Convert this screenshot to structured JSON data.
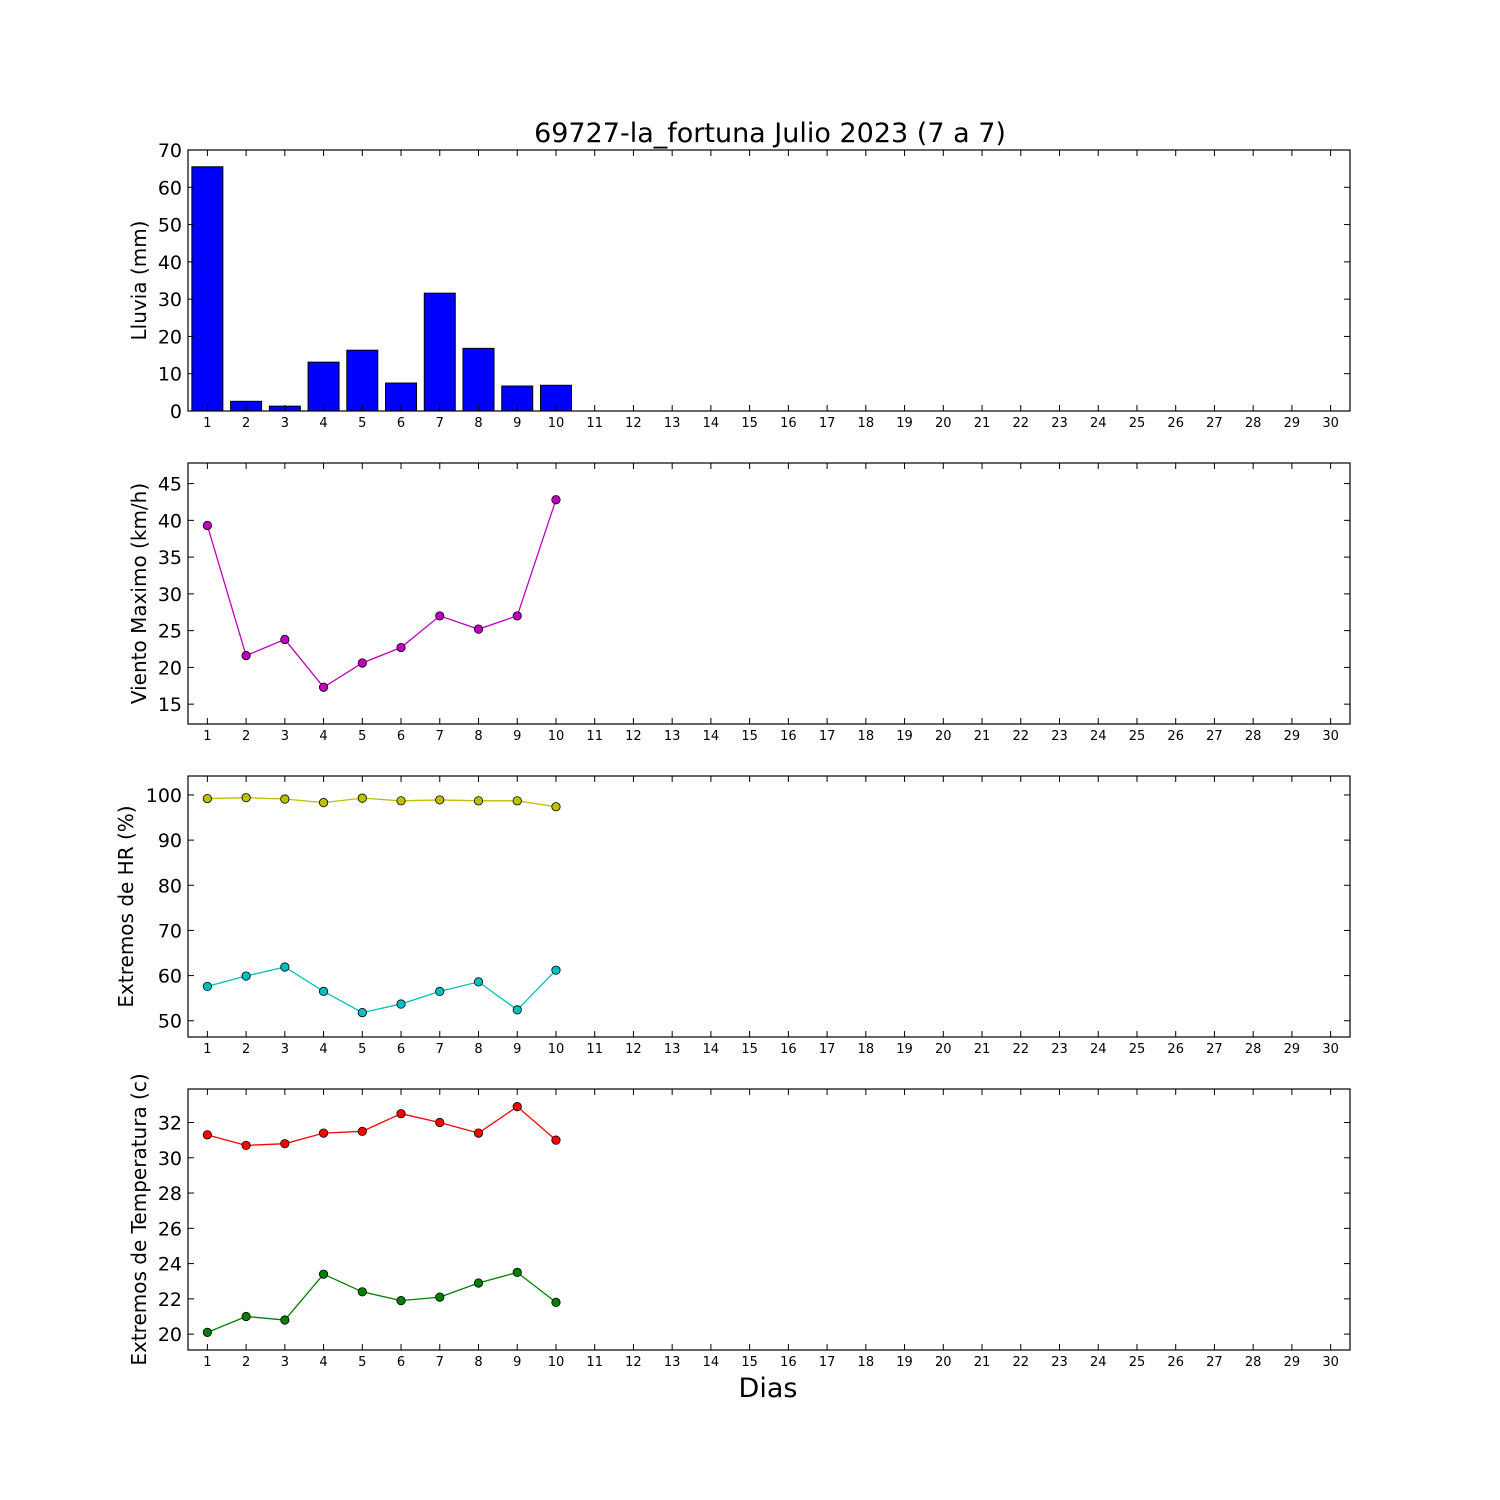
{
  "title": "69727-la_fortuna Julio 2023  (7 a 7)",
  "xlabel": "Dias",
  "chart_data": [
    {
      "type": "bar",
      "ylabel": "Lluvia (mm)",
      "xlim": [
        0.5,
        30.5
      ],
      "ylim": [
        0,
        70
      ],
      "yticks": [
        0,
        10,
        20,
        30,
        40,
        50,
        60,
        70
      ],
      "xticks": [
        1,
        2,
        3,
        4,
        5,
        6,
        7,
        8,
        9,
        10,
        11,
        12,
        13,
        14,
        15,
        16,
        17,
        18,
        19,
        20,
        21,
        22,
        23,
        24,
        25,
        26,
        27,
        28,
        29,
        30
      ],
      "categories": [
        1,
        2,
        3,
        4,
        5,
        6,
        7,
        8,
        9,
        10
      ],
      "series": [
        {
          "color": "#0000ff",
          "values": [
            65.5,
            2.6,
            1.3,
            13.1,
            16.3,
            7.5,
            31.6,
            16.8,
            6.7,
            6.9
          ]
        }
      ]
    },
    {
      "type": "line",
      "ylabel": "Viento Maximo (km/h)",
      "xlim": [
        0.5,
        30.5
      ],
      "ylim": [
        12.3,
        47.8
      ],
      "yticks": [
        15,
        20,
        25,
        30,
        35,
        40,
        45
      ],
      "xticks": [
        1,
        2,
        3,
        4,
        5,
        6,
        7,
        8,
        9,
        10,
        11,
        12,
        13,
        14,
        15,
        16,
        17,
        18,
        19,
        20,
        21,
        22,
        23,
        24,
        25,
        26,
        27,
        28,
        29,
        30
      ],
      "x": [
        1,
        2,
        3,
        4,
        5,
        6,
        7,
        8,
        9,
        10
      ],
      "series": [
        {
          "color": "#bf00bf",
          "values": [
            39.3,
            21.6,
            23.8,
            17.3,
            20.6,
            22.7,
            27.0,
            25.2,
            27.0,
            42.8
          ]
        }
      ]
    },
    {
      "type": "line",
      "ylabel": "Extremos de HR (%)",
      "xlim": [
        0.5,
        30.5
      ],
      "ylim": [
        46.4,
        104.2
      ],
      "yticks": [
        50,
        60,
        70,
        80,
        90,
        100
      ],
      "xticks": [
        1,
        2,
        3,
        4,
        5,
        6,
        7,
        8,
        9,
        10,
        11,
        12,
        13,
        14,
        15,
        16,
        17,
        18,
        19,
        20,
        21,
        22,
        23,
        24,
        25,
        26,
        27,
        28,
        29,
        30
      ],
      "x": [
        1,
        2,
        3,
        4,
        5,
        6,
        7,
        8,
        9,
        10
      ],
      "series": [
        {
          "color": "#bfbf00",
          "values": [
            99.2,
            99.4,
            99.1,
            98.3,
            99.3,
            98.7,
            98.9,
            98.7,
            98.7,
            97.4
          ]
        },
        {
          "color": "#00bfbf",
          "values": [
            57.6,
            59.9,
            61.9,
            56.5,
            51.8,
            53.7,
            56.5,
            58.6,
            52.4,
            61.2
          ]
        }
      ]
    },
    {
      "type": "line",
      "ylabel": "Extremos de Temperatura (c)",
      "xlim": [
        0.5,
        30.5
      ],
      "ylim": [
        19.1,
        33.9
      ],
      "yticks": [
        20,
        22,
        24,
        26,
        28,
        30,
        32
      ],
      "xticks": [
        1,
        2,
        3,
        4,
        5,
        6,
        7,
        8,
        9,
        10,
        11,
        12,
        13,
        14,
        15,
        16,
        17,
        18,
        19,
        20,
        21,
        22,
        23,
        24,
        25,
        26,
        27,
        28,
        29,
        30
      ],
      "x": [
        1,
        2,
        3,
        4,
        5,
        6,
        7,
        8,
        9,
        10
      ],
      "series": [
        {
          "color": "#ff0000",
          "values": [
            31.3,
            30.7,
            30.8,
            31.4,
            31.5,
            32.5,
            32.0,
            31.4,
            32.9,
            31.0
          ]
        },
        {
          "color": "#008000",
          "values": [
            20.1,
            21.0,
            20.8,
            23.4,
            22.4,
            21.9,
            22.1,
            22.9,
            23.5,
            21.8
          ]
        }
      ]
    }
  ]
}
